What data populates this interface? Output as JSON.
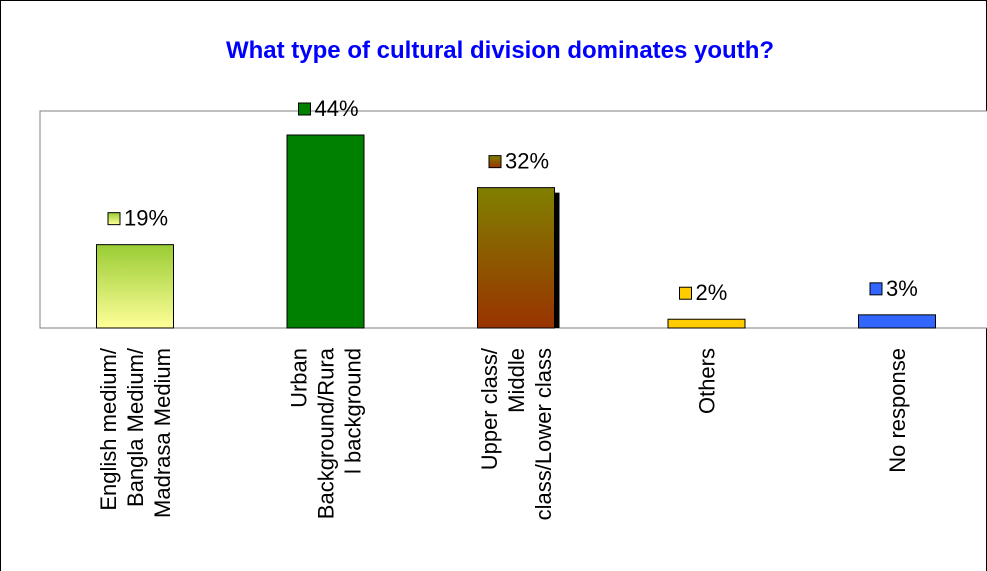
{
  "chart_data": {
    "type": "bar",
    "title": "What type of cultural division dominates youth?",
    "categories": [
      [
        "English medium/",
        "Bangla Medium/",
        "Madrasa Medium"
      ],
      [
        "Urban",
        "Background/Rura",
        "l background"
      ],
      [
        "Upper class/",
        "Middle",
        "class/Lower class"
      ],
      [
        "Others"
      ],
      [
        "No response"
      ]
    ],
    "values": [
      19,
      44,
      32,
      2,
      3
    ],
    "data_labels": [
      "19%",
      "44%",
      "32%",
      "2%",
      "3%"
    ],
    "ylim": [
      0,
      50
    ],
    "grid": false,
    "colors": [
      {
        "top": "#99cc33",
        "bottom": "#ffff99"
      },
      {
        "top": "#008000",
        "bottom": "#008000"
      },
      {
        "top": "#808000",
        "bottom": "#993300"
      },
      {
        "top": "#ffcc00",
        "bottom": "#ffcc00"
      },
      {
        "top": "#3366ff",
        "bottom": "#3366ff"
      }
    ],
    "title_color": "#0000ff"
  }
}
